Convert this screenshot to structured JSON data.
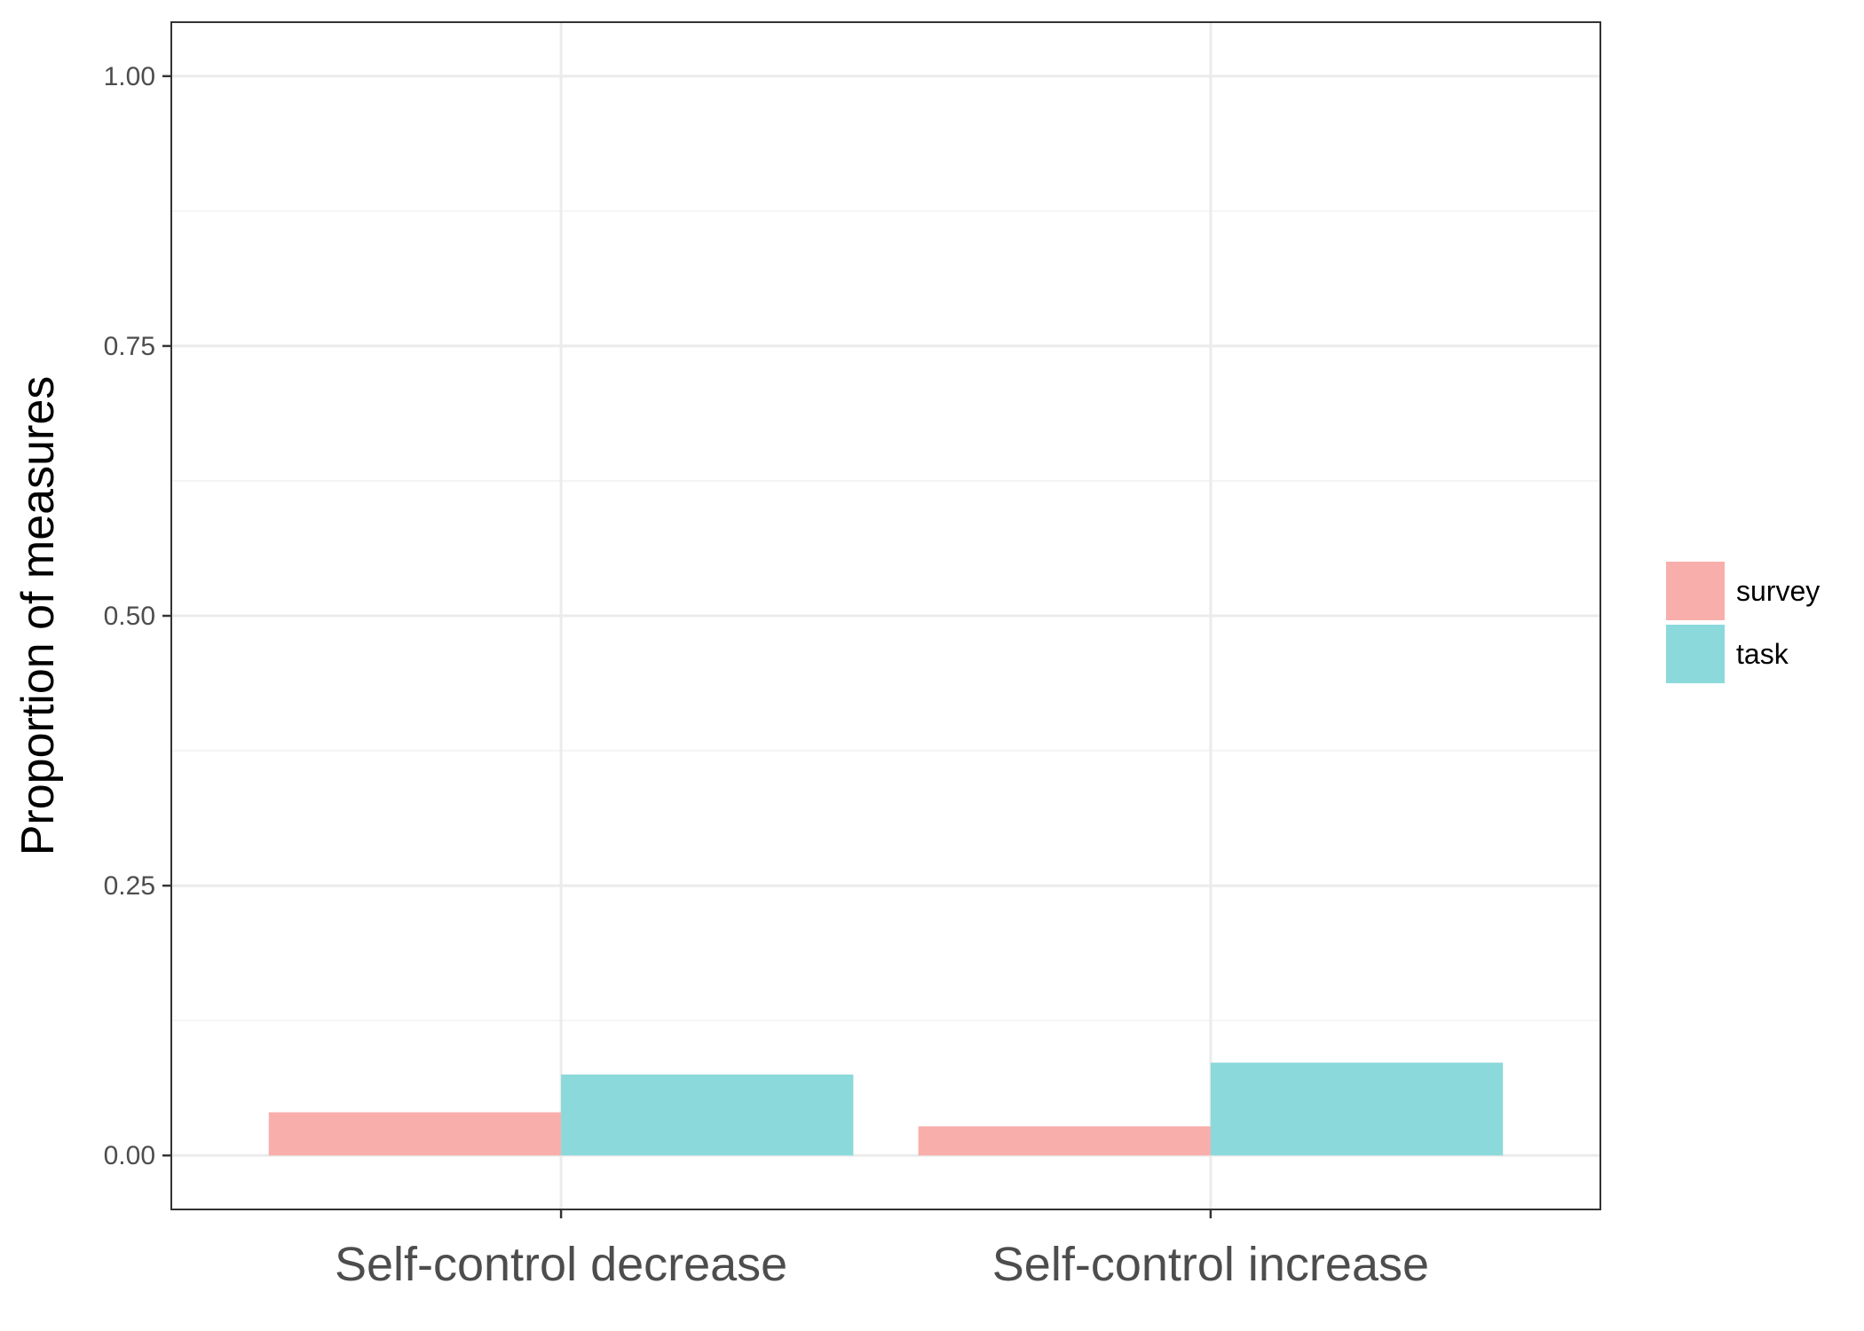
{
  "chart_data": {
    "type": "bar",
    "title": "",
    "xlabel": "",
    "ylabel": "Proportion of measures",
    "categories": [
      "Self-control decrease",
      "Self-control increase"
    ],
    "series": [
      {
        "name": "survey",
        "color": "#f8aeab",
        "values": [
          0.04,
          0.027
        ]
      },
      {
        "name": "task",
        "color": "#8bd9da",
        "values": [
          0.075,
          0.086
        ]
      }
    ],
    "ylim": [
      -0.05,
      1.05
    ],
    "yticks": [
      0.0,
      0.25,
      0.5,
      0.75,
      1.0
    ],
    "ytick_labels": [
      "0.00",
      "0.25",
      "0.50",
      "0.75",
      "1.00"
    ],
    "grid": true,
    "legend_position": "right",
    "colors": {
      "grid_major": "#ebebeb",
      "grid_minor": "#f2f2f2",
      "panel_border": "#333333",
      "tick_text": "#4d4d4d"
    }
  }
}
